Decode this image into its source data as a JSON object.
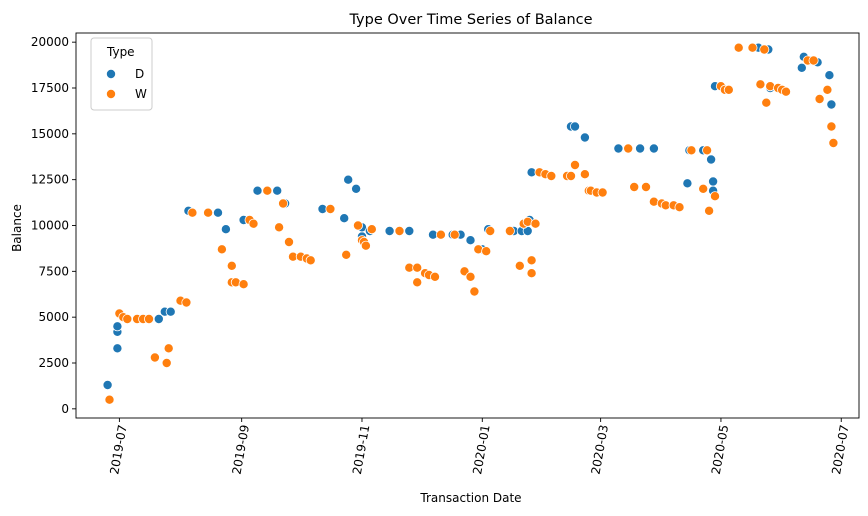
{
  "chart_data": {
    "type": "scatter",
    "title": "Type Over Time Series of Balance",
    "xlabel": "Transaction Date",
    "ylabel": "Balance",
    "x_type": "date",
    "xlim": [
      "2019-06-09",
      "2020-07-10"
    ],
    "ylim": [
      -500,
      20500
    ],
    "x_ticks": [
      "2019-07-01",
      "2019-09-01",
      "2019-11-01",
      "2020-01-01",
      "2020-03-01",
      "2020-05-01",
      "2020-07-01"
    ],
    "x_tick_labels": [
      "2019-07",
      "2019-09",
      "2019-11",
      "2020-01",
      "2020-03",
      "2020-05",
      "2020-07"
    ],
    "y_ticks": [
      0,
      2500,
      5000,
      7500,
      10000,
      12500,
      15000,
      17500,
      20000
    ],
    "y_tick_labels": [
      "0",
      "2500",
      "5000",
      "7500",
      "10000",
      "12500",
      "15000",
      "17500",
      "20000"
    ],
    "x_tick_rotation": -80,
    "grid": false,
    "legend": {
      "title": "Type",
      "position": "top-left"
    },
    "series": [
      {
        "name": "D",
        "color": "#1f77b4",
        "points": [
          [
            "2019-06-25",
            1300
          ],
          [
            "2019-06-30",
            3300
          ],
          [
            "2019-06-30",
            4200
          ],
          [
            "2019-06-30",
            4500
          ],
          [
            "2019-07-21",
            4900
          ],
          [
            "2019-07-24",
            5300
          ],
          [
            "2019-07-27",
            5300
          ],
          [
            "2019-08-05",
            10800
          ],
          [
            "2019-08-20",
            10700
          ],
          [
            "2019-08-24",
            9800
          ],
          [
            "2019-09-02",
            10300
          ],
          [
            "2019-09-09",
            11900
          ],
          [
            "2019-09-19",
            11900
          ],
          [
            "2019-09-23",
            11200
          ],
          [
            "2019-10-12",
            10900
          ],
          [
            "2019-10-23",
            10400
          ],
          [
            "2019-10-25",
            12500
          ],
          [
            "2019-10-29",
            12000
          ],
          [
            "2019-11-01",
            9400
          ],
          [
            "2019-11-01",
            9900
          ],
          [
            "2019-11-05",
            9700
          ],
          [
            "2019-11-15",
            9700
          ],
          [
            "2019-11-20",
            9700
          ],
          [
            "2019-11-25",
            9700
          ],
          [
            "2019-12-07",
            9500
          ],
          [
            "2019-12-17",
            9500
          ],
          [
            "2019-12-21",
            9500
          ],
          [
            "2019-12-26",
            9200
          ],
          [
            "2020-01-01",
            8700
          ],
          [
            "2020-01-04",
            9800
          ],
          [
            "2020-01-17",
            9700
          ],
          [
            "2020-01-21",
            9700
          ],
          [
            "2020-01-24",
            9700
          ],
          [
            "2020-01-25",
            10300
          ],
          [
            "2020-01-26",
            12900
          ],
          [
            "2020-02-15",
            15400
          ],
          [
            "2020-02-17",
            15400
          ],
          [
            "2020-02-22",
            14800
          ],
          [
            "2020-03-10",
            14200
          ],
          [
            "2020-03-21",
            14200
          ],
          [
            "2020-03-28",
            14200
          ],
          [
            "2020-04-14",
            12300
          ],
          [
            "2020-04-15",
            14100
          ],
          [
            "2020-04-22",
            14100
          ],
          [
            "2020-04-26",
            13600
          ],
          [
            "2020-04-27",
            12400
          ],
          [
            "2020-04-27",
            11900
          ],
          [
            "2020-04-28",
            17600
          ],
          [
            "2020-05-20",
            19700
          ],
          [
            "2020-05-25",
            19600
          ],
          [
            "2020-05-26",
            17500
          ],
          [
            "2020-06-11",
            18600
          ],
          [
            "2020-06-12",
            19200
          ],
          [
            "2020-06-15",
            19000
          ],
          [
            "2020-06-19",
            18900
          ],
          [
            "2020-06-25",
            18200
          ],
          [
            "2020-06-26",
            16600
          ]
        ]
      },
      {
        "name": "W",
        "color": "#ff7f0e",
        "points": [
          [
            "2019-06-26",
            500
          ],
          [
            "2019-07-01",
            5200
          ],
          [
            "2019-07-03",
            5000
          ],
          [
            "2019-07-05",
            4900
          ],
          [
            "2019-07-10",
            4900
          ],
          [
            "2019-07-13",
            4900
          ],
          [
            "2019-07-16",
            4900
          ],
          [
            "2019-07-19",
            2800
          ],
          [
            "2019-07-26",
            3300
          ],
          [
            "2019-07-25",
            2500
          ],
          [
            "2019-08-01",
            5900
          ],
          [
            "2019-08-04",
            5800
          ],
          [
            "2019-08-07",
            10700
          ],
          [
            "2019-08-15",
            10700
          ],
          [
            "2019-08-22",
            8700
          ],
          [
            "2019-08-27",
            7800
          ],
          [
            "2019-08-27",
            6900
          ],
          [
            "2019-08-29",
            6900
          ],
          [
            "2019-09-02",
            6800
          ],
          [
            "2019-09-05",
            10300
          ],
          [
            "2019-09-07",
            10100
          ],
          [
            "2019-09-14",
            11900
          ],
          [
            "2019-09-20",
            9900
          ],
          [
            "2019-09-22",
            11200
          ],
          [
            "2019-09-25",
            9100
          ],
          [
            "2019-09-27",
            8300
          ],
          [
            "2019-10-01",
            8300
          ],
          [
            "2019-10-04",
            8200
          ],
          [
            "2019-10-06",
            8100
          ],
          [
            "2019-10-16",
            10900
          ],
          [
            "2019-10-24",
            8400
          ],
          [
            "2019-10-30",
            10000
          ],
          [
            "2019-11-01",
            9200
          ],
          [
            "2019-11-02",
            9100
          ],
          [
            "2019-11-03",
            8900
          ],
          [
            "2019-11-06",
            9800
          ],
          [
            "2019-11-20",
            9700
          ],
          [
            "2019-11-25",
            7700
          ],
          [
            "2019-11-29",
            7700
          ],
          [
            "2019-11-29",
            6900
          ],
          [
            "2019-12-03",
            7400
          ],
          [
            "2019-12-05",
            7300
          ],
          [
            "2019-12-08",
            7200
          ],
          [
            "2019-12-11",
            9500
          ],
          [
            "2019-12-18",
            9500
          ],
          [
            "2019-12-23",
            7500
          ],
          [
            "2019-12-26",
            7200
          ],
          [
            "2019-12-28",
            6400
          ],
          [
            "2019-12-30",
            8700
          ],
          [
            "2020-01-03",
            8600
          ],
          [
            "2020-01-05",
            9700
          ],
          [
            "2020-01-15",
            9700
          ],
          [
            "2020-01-20",
            7800
          ],
          [
            "2020-01-22",
            10100
          ],
          [
            "2020-01-24",
            10200
          ],
          [
            "2020-01-26",
            8100
          ],
          [
            "2020-01-26",
            7400
          ],
          [
            "2020-01-28",
            10100
          ],
          [
            "2020-01-30",
            12900
          ],
          [
            "2020-02-02",
            12800
          ],
          [
            "2020-02-05",
            12700
          ],
          [
            "2020-02-13",
            12700
          ],
          [
            "2020-02-15",
            12700
          ],
          [
            "2020-02-17",
            13300
          ],
          [
            "2020-02-22",
            12800
          ],
          [
            "2020-02-24",
            11900
          ],
          [
            "2020-02-25",
            11900
          ],
          [
            "2020-02-28",
            11800
          ],
          [
            "2020-03-02",
            11800
          ],
          [
            "2020-03-15",
            14200
          ],
          [
            "2020-03-18",
            12100
          ],
          [
            "2020-03-24",
            12100
          ],
          [
            "2020-03-28",
            11300
          ],
          [
            "2020-04-01",
            11200
          ],
          [
            "2020-04-03",
            11100
          ],
          [
            "2020-04-07",
            11100
          ],
          [
            "2020-04-10",
            11000
          ],
          [
            "2020-04-16",
            14100
          ],
          [
            "2020-04-22",
            12000
          ],
          [
            "2020-04-24",
            14100
          ],
          [
            "2020-04-25",
            10800
          ],
          [
            "2020-04-28",
            11600
          ],
          [
            "2020-05-01",
            17600
          ],
          [
            "2020-05-03",
            17400
          ],
          [
            "2020-05-05",
            17400
          ],
          [
            "2020-05-10",
            19700
          ],
          [
            "2020-05-17",
            19700
          ],
          [
            "2020-05-21",
            17700
          ],
          [
            "2020-05-23",
            19600
          ],
          [
            "2020-05-24",
            16700
          ],
          [
            "2020-05-26",
            17600
          ],
          [
            "2020-05-30",
            17500
          ],
          [
            "2020-06-01",
            17400
          ],
          [
            "2020-06-03",
            17300
          ],
          [
            "2020-06-14",
            19000
          ],
          [
            "2020-06-17",
            19000
          ],
          [
            "2020-06-20",
            16900
          ],
          [
            "2020-06-24",
            17400
          ],
          [
            "2020-06-26",
            15400
          ],
          [
            "2020-06-27",
            14500
          ]
        ]
      }
    ]
  }
}
